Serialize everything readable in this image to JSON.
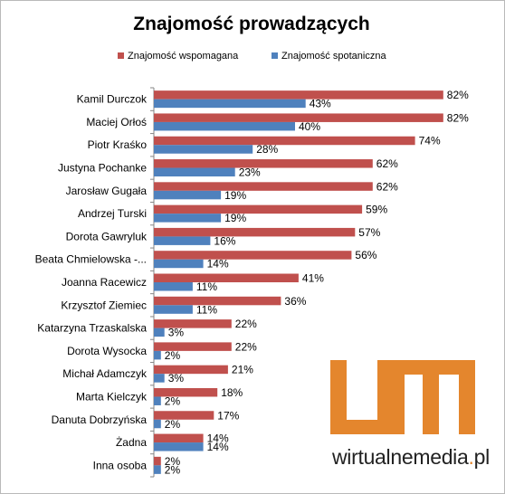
{
  "chart_data": {
    "type": "bar",
    "orientation": "horizontal",
    "title": "Znajomość prowadzących",
    "categories": [
      "Kamil Durczok",
      "Maciej Orłoś",
      "Piotr Kraśko",
      "Justyna Pochanke",
      "Jarosław Gugała",
      "Andrzej Turski",
      "Dorota Gawryluk",
      "Beata Chmielowska -...",
      "Joanna Racewicz",
      "Krzysztof Ziemiec",
      "Katarzyna Trzaskalska",
      "Dorota Wysocka",
      "Michał Adamczyk",
      "Marta Kielczyk",
      "Danuta Dobrzyńska",
      "Żadna",
      "Inna osoba"
    ],
    "series": [
      {
        "name": "Znajomość wspomagana",
        "color": "#c0504d",
        "values": [
          82,
          82,
          74,
          62,
          62,
          59,
          57,
          56,
          41,
          36,
          22,
          22,
          21,
          18,
          17,
          14,
          2
        ]
      },
      {
        "name": "Znajomość spotaniczna",
        "color": "#4f81bd",
        "values": [
          43,
          40,
          28,
          23,
          19,
          19,
          16,
          14,
          11,
          11,
          3,
          2,
          3,
          2,
          2,
          14,
          2
        ]
      }
    ],
    "value_suffix": "%",
    "legend_position": "top",
    "xlim": [
      0,
      100
    ],
    "grid": false
  },
  "watermark": {
    "brand": "wirtualnemedia",
    "dot": ".",
    "tld": "pl",
    "color": "#e4862d"
  }
}
